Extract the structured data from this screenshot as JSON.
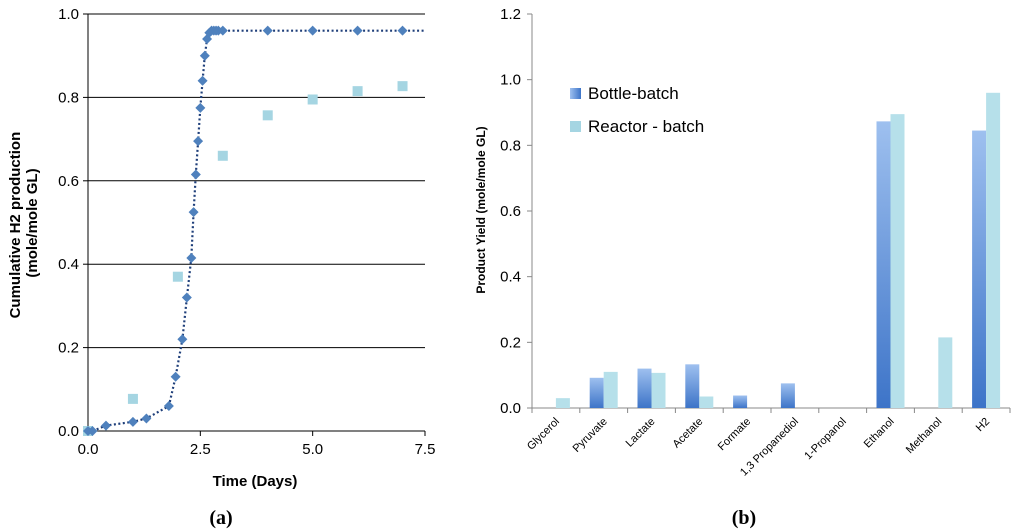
{
  "chart_data": [
    {
      "id": "a",
      "type": "scatter",
      "panel_label": "(a)",
      "xlabel": "Time (Days)",
      "ylabel": "Cumulative H2 production (mole/mole GL)",
      "xlim": [
        0,
        7.5
      ],
      "ylim": [
        0,
        1.0
      ],
      "x_ticks": [
        "0.0",
        "2.5",
        "5.0",
        "7.5"
      ],
      "y_ticks": [
        "0.0",
        "0.2",
        "0.4",
        "0.6",
        "0.8",
        "1.0"
      ],
      "grid": "horizontal",
      "series": [
        {
          "marker": "diamond",
          "color": "#4f81bd",
          "x": [
            0.0,
            0.1,
            0.4,
            1.0,
            1.3,
            1.8,
            1.95,
            2.1,
            2.2,
            2.3,
            2.35,
            2.4,
            2.45,
            2.5,
            2.55,
            2.6,
            2.65,
            2.7,
            2.75,
            2.8,
            2.85,
            2.9,
            3.0,
            4.0,
            5.0,
            6.0,
            7.0
          ],
          "y": [
            0.0,
            0.0,
            0.013,
            0.022,
            0.03,
            0.06,
            0.13,
            0.22,
            0.32,
            0.415,
            0.525,
            0.615,
            0.695,
            0.775,
            0.84,
            0.9,
            0.94,
            0.955,
            0.96,
            0.96,
            0.96,
            0.96,
            0.96,
            0.96,
            0.96,
            0.96,
            0.96
          ]
        },
        {
          "marker": "square",
          "color": "#a5d5e2",
          "x": [
            0.0,
            1.0,
            2.0,
            3.0,
            4.0,
            5.0,
            6.0,
            7.0
          ],
          "y": [
            0.0,
            0.077,
            0.37,
            0.66,
            0.757,
            0.795,
            0.815,
            0.827
          ]
        }
      ],
      "trendline": {
        "style": "dotted",
        "color": "#1f3f7a",
        "xmax": 7.5,
        "yplateau": 0.96
      }
    },
    {
      "id": "b",
      "type": "bar",
      "panel_label": "(b)",
      "xlabel": "",
      "ylabel": "Product Yield (mole/mole GL)",
      "ylim": [
        0,
        1.2
      ],
      "y_ticks": [
        "0.0",
        "0.2",
        "0.4",
        "0.6",
        "0.8",
        "1.0",
        "1.2"
      ],
      "grid": "none",
      "legend_position": "top-left",
      "categories": [
        "Glycerol",
        "Pyruvate",
        "Lactate",
        "Acetate",
        "Formate",
        "1,3 Propanediol",
        "1-Propanol",
        "Ethanol",
        "Methanol",
        "H2"
      ],
      "series": [
        {
          "name": "Bottle-batch",
          "color": "#4f81bd",
          "values": [
            0.0,
            0.092,
            0.12,
            0.133,
            0.038,
            0.075,
            0.0,
            0.873,
            0.0,
            0.845
          ]
        },
        {
          "name": "Reactor - batch",
          "color": "#a5d5e2",
          "values": [
            0.03,
            0.11,
            0.107,
            0.035,
            0.0,
            0.0,
            0.0,
            0.895,
            0.215,
            0.96
          ]
        }
      ]
    }
  ]
}
